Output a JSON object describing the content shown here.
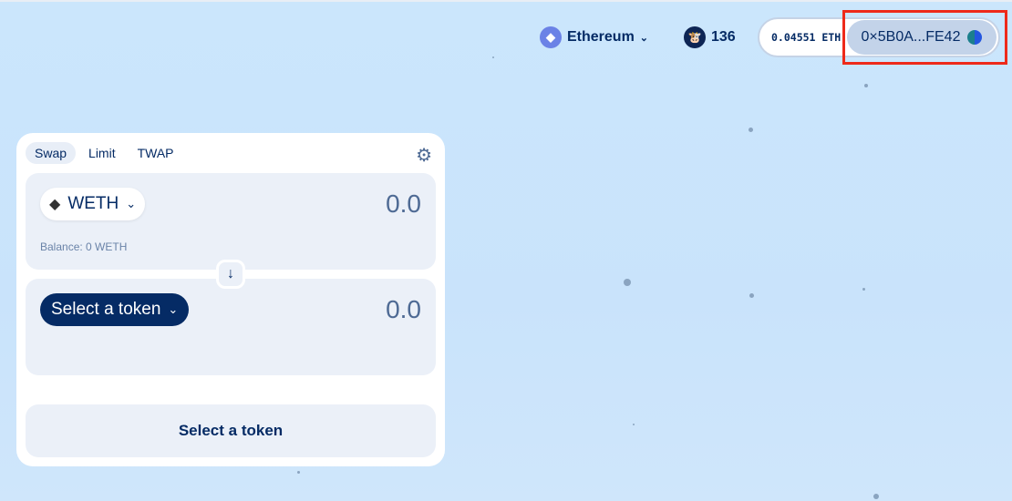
{
  "header": {
    "network": "Ethereum",
    "cow_count": "136",
    "eth_balance": "0.04551 ETH",
    "address": "0×5B0A...FE42"
  },
  "swap": {
    "tabs": [
      {
        "label": "Swap",
        "active": true
      },
      {
        "label": "Limit"
      },
      {
        "label": "TWAP"
      }
    ],
    "sell": {
      "token": "WETH",
      "amount": "0.0",
      "balance": "Balance: 0 WETH"
    },
    "buy": {
      "token": "Select a token",
      "amount": "0.0"
    },
    "action_label": "Select a token"
  },
  "icons": {
    "network": "ethereum-icon",
    "settings": "gear-icon",
    "switch": "arrow-down-icon"
  }
}
